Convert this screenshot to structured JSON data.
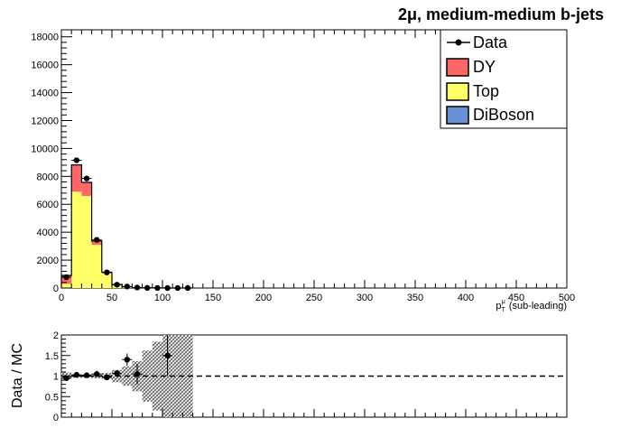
{
  "chart_data": [
    {
      "type": "bar",
      "title": "2μ, medium-medium b-jets",
      "xlabel_main": "p",
      "xlabel_sub": "T",
      "xlabel_sup": "μ",
      "xlabel_suffix": "(sub-leading)",
      "xlim": [
        0,
        500
      ],
      "ylim": [
        0,
        18500
      ],
      "x_ticks": [
        0,
        50,
        100,
        150,
        200,
        250,
        300,
        350,
        400,
        450,
        500
      ],
      "y_ticks": [
        0,
        2000,
        4000,
        6000,
        8000,
        10000,
        12000,
        14000,
        16000,
        18000
      ],
      "bin_edges": [
        0,
        10,
        20,
        30,
        40,
        50,
        60,
        70,
        80,
        90,
        100,
        110,
        120,
        130
      ],
      "series": [
        {
          "name": "Top",
          "color": "#ffff66",
          "values": [
            300,
            6900,
            6600,
            3100,
            1050,
            220,
            80,
            30,
            10,
            5,
            2,
            1,
            1
          ]
        },
        {
          "name": "DY",
          "color": "#ff6666",
          "values": [
            600,
            1900,
            950,
            260,
            80,
            15,
            5,
            3,
            1,
            1,
            0,
            0,
            0
          ]
        },
        {
          "name": "DiBoson",
          "color": "#6b8fd4",
          "values": [
            5,
            20,
            20,
            10,
            5,
            2,
            1,
            0,
            0,
            0,
            0,
            0,
            0
          ]
        }
      ],
      "data": {
        "name": "Data",
        "x": [
          5,
          15,
          25,
          35,
          45,
          55,
          65,
          75,
          85,
          95,
          105,
          115,
          125
        ],
        "y": [
          780,
          9150,
          7850,
          3450,
          1120,
          240,
          110,
          35,
          12,
          7,
          3,
          1,
          1
        ]
      },
      "legend_position": "top-right",
      "legend": [
        "Data",
        "DY",
        "Top",
        "DiBoson"
      ]
    },
    {
      "type": "scatter",
      "ylabel": "Data / MC",
      "xlim": [
        0,
        500
      ],
      "ylim": [
        0,
        2
      ],
      "y_ticks": [
        0,
        0.5,
        1,
        1.5,
        2
      ],
      "y_tick_labels": [
        "0",
        "0.5",
        "1",
        "1.5",
        "2"
      ],
      "reference_line": 1,
      "x": [
        5,
        15,
        25,
        35,
        45,
        55,
        65,
        75,
        105
      ],
      "y": [
        0.95,
        1.03,
        1.02,
        1.05,
        0.97,
        1.07,
        1.4,
        1.05,
        1.5
      ],
      "yerr": [
        0.05,
        0.02,
        0.02,
        0.02,
        0.04,
        0.07,
        0.15,
        0.25,
        0.5
      ]
    }
  ]
}
